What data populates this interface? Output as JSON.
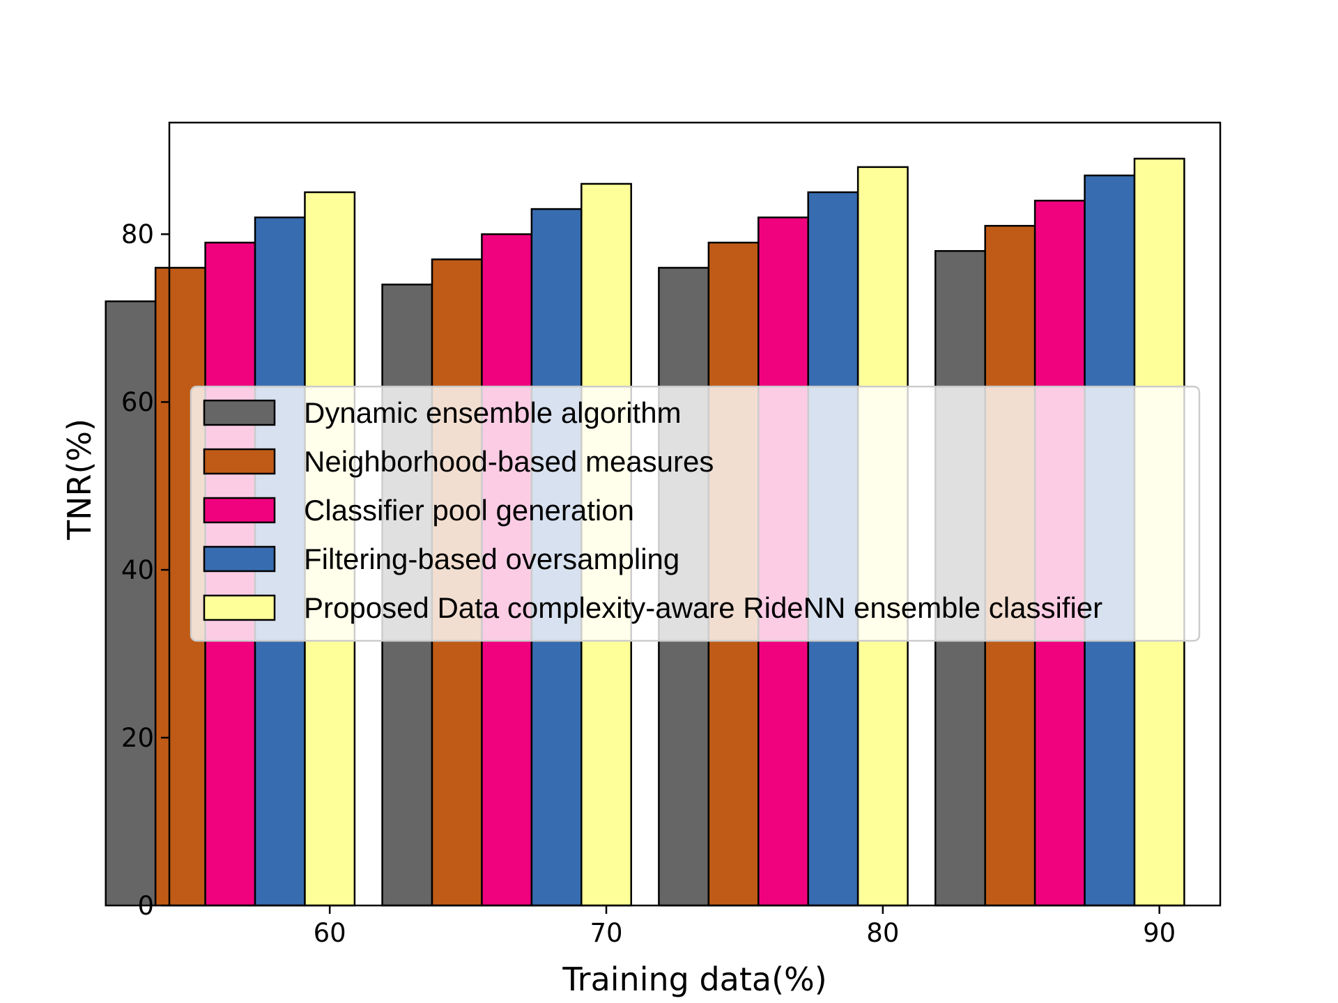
{
  "chart_data": {
    "type": "bar",
    "title": "",
    "xlabel": "Training data(%)",
    "ylabel": "TNR(%)",
    "categories": [
      "60",
      "70",
      "80",
      "90"
    ],
    "yticks": [
      "0",
      "20",
      "40",
      "60",
      "80"
    ],
    "ylim": [
      0,
      93.3
    ],
    "xlim": [
      54.2,
      92.2
    ],
    "grid": false,
    "legend_position": "center",
    "series": [
      {
        "name": "Dynamic ensemble algorithm",
        "color": "#666666",
        "values": [
          72,
          74,
          76,
          78
        ]
      },
      {
        "name": "Neighborhood-based measures",
        "color": "#bf5b17",
        "values": [
          76,
          77,
          79,
          81
        ]
      },
      {
        "name": "Classifier pool generation",
        "color": "#f0027f",
        "values": [
          79,
          80,
          82,
          84
        ]
      },
      {
        "name": "Filtering-based oversampling",
        "color": "#386cb0",
        "values": [
          82,
          83,
          85,
          87
        ]
      },
      {
        "name": "Proposed Data complexity-aware RideNN ensemble classifier",
        "color": "#ffff99",
        "values": [
          85,
          86,
          88,
          89
        ]
      }
    ]
  }
}
